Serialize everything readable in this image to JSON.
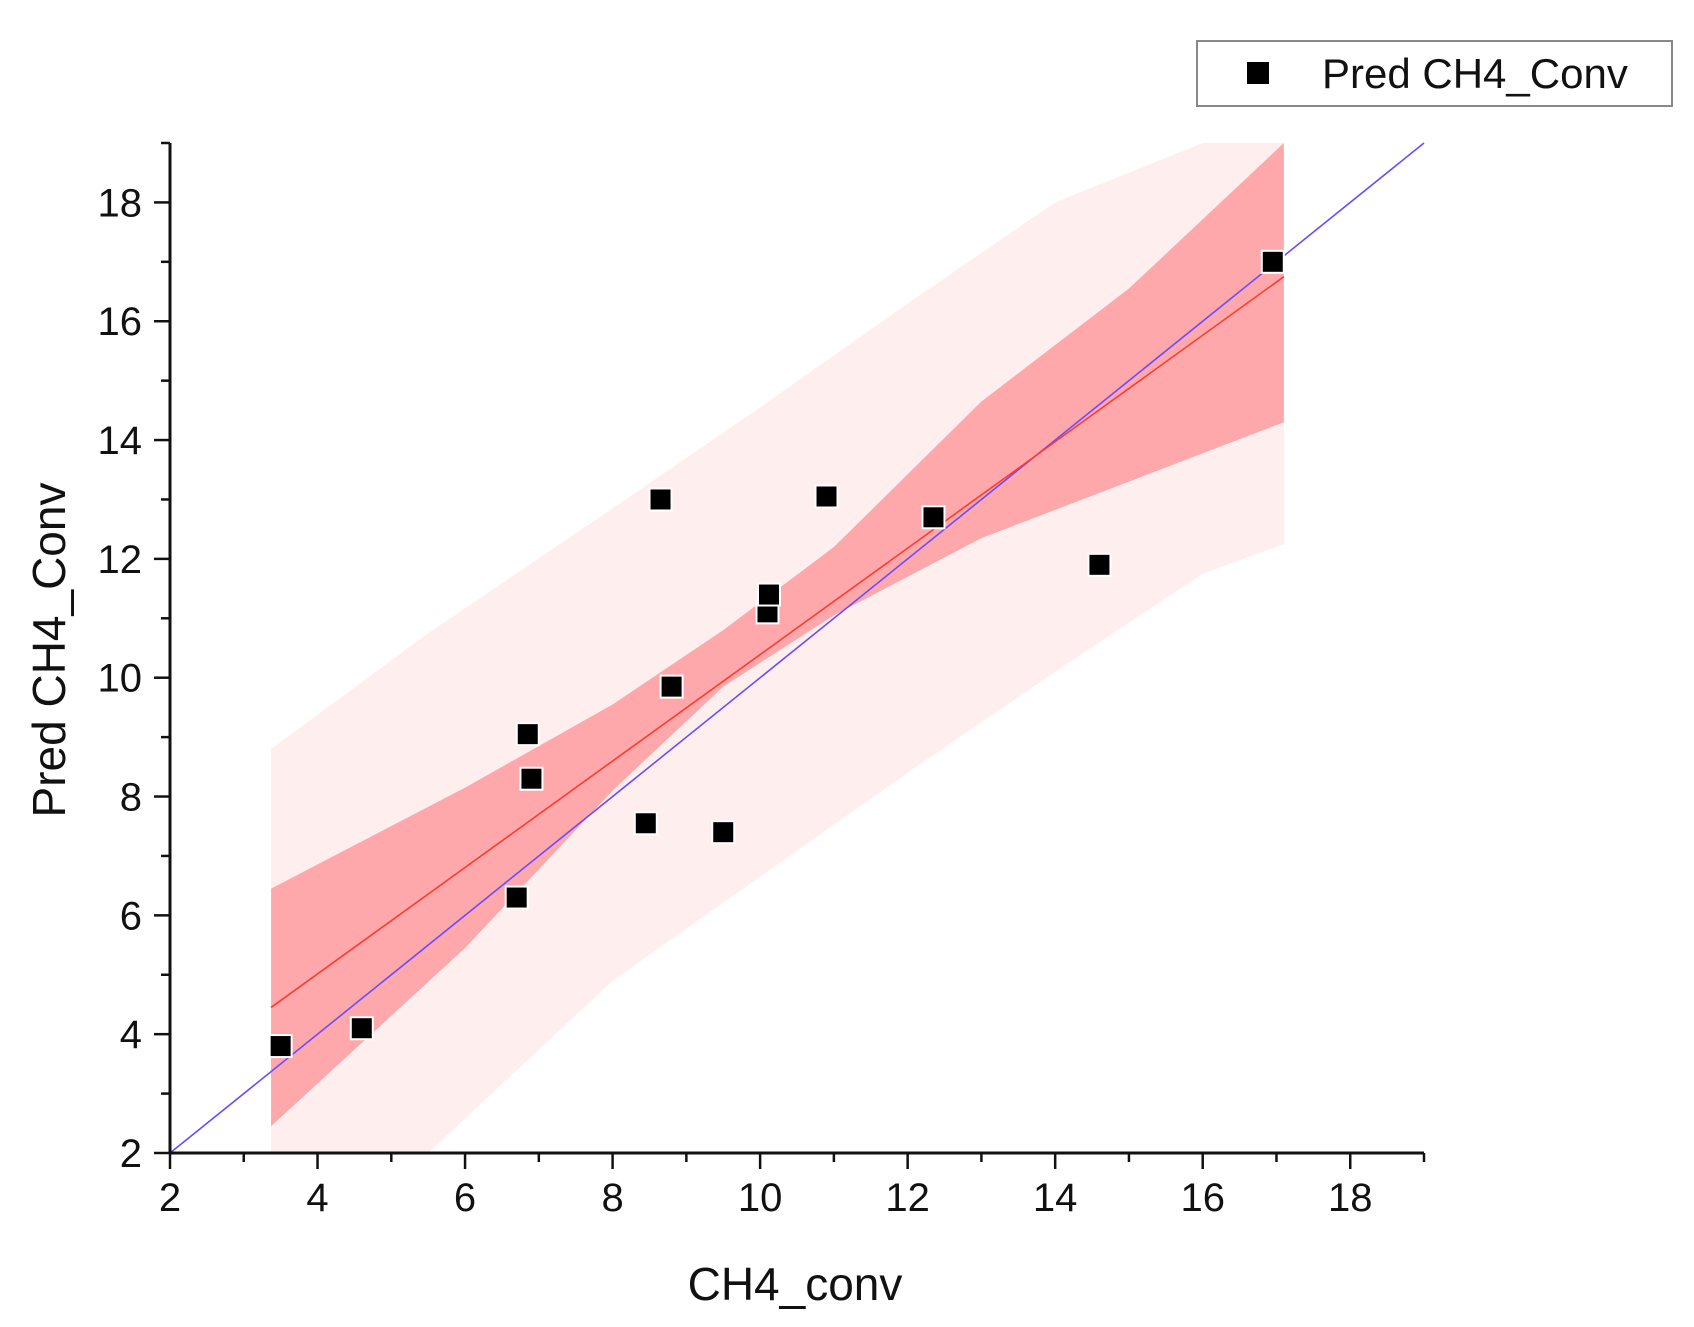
{
  "chart_data": {
    "type": "scatter",
    "title": "",
    "xlabel": "CH4_conv",
    "ylabel": "Pred CH4_Conv",
    "xlim": [
      2,
      19
    ],
    "ylim": [
      2,
      19
    ],
    "xticks": [
      2,
      4,
      6,
      8,
      10,
      12,
      14,
      16,
      18
    ],
    "yticks": [
      2,
      4,
      6,
      8,
      10,
      12,
      14,
      16,
      18
    ],
    "x_minor_step": 1,
    "y_minor_step": 1,
    "legend": {
      "position": "top-right",
      "entries": [
        "Pred CH4_Conv"
      ]
    },
    "series": [
      {
        "name": "Pred CH4_Conv",
        "marker": "square",
        "color": "#000000",
        "points": [
          {
            "x": 3.5,
            "y": 3.8
          },
          {
            "x": 4.6,
            "y": 4.1
          },
          {
            "x": 6.7,
            "y": 6.3
          },
          {
            "x": 6.85,
            "y": 9.05
          },
          {
            "x": 6.9,
            "y": 8.3
          },
          {
            "x": 8.45,
            "y": 7.55
          },
          {
            "x": 8.65,
            "y": 13.0
          },
          {
            "x": 8.8,
            "y": 9.85
          },
          {
            "x": 9.5,
            "y": 7.4
          },
          {
            "x": 10.1,
            "y": 11.1
          },
          {
            "x": 10.12,
            "y": 11.4
          },
          {
            "x": 10.9,
            "y": 13.05
          },
          {
            "x": 12.35,
            "y": 12.7
          },
          {
            "x": 14.6,
            "y": 11.9
          },
          {
            "x": 16.95,
            "y": 17.0
          }
        ]
      }
    ],
    "fit_line": {
      "color": "#ff3b30",
      "x": [
        3.37,
        17.1
      ],
      "y": [
        4.45,
        16.75
      ]
    },
    "identity_line": {
      "color": "#6a4cff",
      "x": [
        2,
        19
      ],
      "y": [
        2,
        19
      ]
    },
    "confidence_band": {
      "color": "#ffa8ac",
      "x": [
        3.37,
        6.0,
        8.0,
        9.5,
        11.0,
        13.0,
        15.0,
        17.1
      ],
      "lower": [
        2.45,
        5.45,
        8.1,
        9.85,
        11.05,
        12.35,
        13.3,
        14.3
      ],
      "upper": [
        6.45,
        8.15,
        9.55,
        10.8,
        12.2,
        14.65,
        16.55,
        19.0
      ]
    },
    "prediction_band": {
      "color": "#ffeeee",
      "x": [
        3.37,
        5.5,
        8.0,
        10.0,
        12.0,
        14.0,
        16.0,
        17.1
      ],
      "lower": [
        2.0,
        2.0,
        4.9,
        6.65,
        8.4,
        10.1,
        11.75,
        12.25
      ],
      "upper": [
        8.8,
        10.75,
        12.85,
        14.55,
        16.3,
        18.0,
        19.0,
        19.0
      ]
    }
  }
}
